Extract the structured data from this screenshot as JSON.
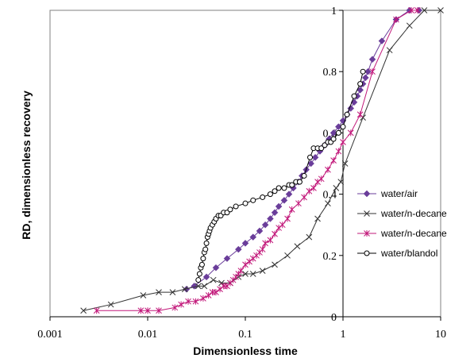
{
  "chart_data": {
    "type": "scatter",
    "title": "",
    "xlabel": "Dimensionless time",
    "ylabel": "RD, dimensionless recovery",
    "xscale": "log",
    "xlim": [
      0.001,
      10
    ],
    "ylim": [
      0,
      1
    ],
    "x_ticks": [
      "0.001",
      "0.01",
      "0.1",
      "1",
      "10"
    ],
    "y_ticks": [
      "0",
      "0.2",
      "0.4",
      "0.6",
      "0.8",
      "1"
    ],
    "grid": false,
    "legend_position": "right",
    "series": [
      {
        "name": "water/air",
        "color": "#6a3d9a",
        "marker": "diamond",
        "x": [
          0.025,
          0.03,
          0.04,
          0.05,
          0.065,
          0.085,
          0.1,
          0.12,
          0.14,
          0.16,
          0.18,
          0.2,
          0.22,
          0.25,
          0.28,
          0.31,
          0.35,
          0.38,
          0.42,
          0.47,
          0.52,
          0.58,
          0.65,
          0.72,
          0.8,
          0.9,
          1.0,
          1.1,
          1.2,
          1.3,
          1.4,
          1.5,
          1.6,
          1.7,
          1.8,
          2.0,
          2.5,
          3.5,
          4.8,
          6.0
        ],
        "y": [
          0.09,
          0.1,
          0.13,
          0.16,
          0.19,
          0.22,
          0.24,
          0.26,
          0.28,
          0.3,
          0.32,
          0.34,
          0.36,
          0.38,
          0.4,
          0.42,
          0.44,
          0.46,
          0.48,
          0.5,
          0.52,
          0.54,
          0.56,
          0.58,
          0.6,
          0.62,
          0.64,
          0.66,
          0.68,
          0.7,
          0.72,
          0.74,
          0.76,
          0.78,
          0.8,
          0.84,
          0.9,
          0.97,
          1.0,
          1.0
        ]
      },
      {
        "name": "water/n-decane",
        "color": "#333333",
        "marker": "x",
        "x": [
          0.0022,
          0.0042,
          0.009,
          0.013,
          0.018,
          0.024,
          0.033,
          0.038,
          0.047,
          0.057,
          0.07,
          0.085,
          0.1,
          0.12,
          0.15,
          0.2,
          0.27,
          0.34,
          0.45,
          0.55,
          0.7,
          0.85,
          0.95,
          1.05,
          1.6,
          3.0,
          4.8,
          6.8,
          10
        ],
        "y": [
          0.02,
          0.04,
          0.07,
          0.08,
          0.08,
          0.09,
          0.1,
          0.1,
          0.12,
          0.11,
          0.11,
          0.13,
          0.14,
          0.14,
          0.15,
          0.17,
          0.2,
          0.23,
          0.26,
          0.32,
          0.37,
          0.42,
          0.44,
          0.5,
          0.65,
          0.87,
          0.95,
          1.0,
          1.0
        ]
      },
      {
        "name": "water/n-decane",
        "color": "#c2187a",
        "marker": "asterisk",
        "x": [
          0.003,
          0.0085,
          0.01,
          0.013,
          0.019,
          0.022,
          0.026,
          0.031,
          0.037,
          0.042,
          0.046,
          0.05,
          0.055,
          0.06,
          0.065,
          0.07,
          0.075,
          0.08,
          0.085,
          0.09,
          0.1,
          0.11,
          0.12,
          0.13,
          0.14,
          0.15,
          0.16,
          0.18,
          0.2,
          0.22,
          0.24,
          0.27,
          0.3,
          0.35,
          0.4,
          0.45,
          0.5,
          0.55,
          0.6,
          0.7,
          0.8,
          0.9,
          1.0,
          1.2,
          1.5,
          2.0,
          3.5,
          5.0,
          5.8
        ],
        "y": [
          0.02,
          0.02,
          0.02,
          0.02,
          0.03,
          0.04,
          0.05,
          0.05,
          0.06,
          0.07,
          0.08,
          0.08,
          0.09,
          0.1,
          0.1,
          0.11,
          0.12,
          0.13,
          0.14,
          0.15,
          0.17,
          0.18,
          0.19,
          0.2,
          0.21,
          0.22,
          0.24,
          0.25,
          0.27,
          0.29,
          0.3,
          0.32,
          0.35,
          0.37,
          0.39,
          0.41,
          0.42,
          0.44,
          0.45,
          0.48,
          0.51,
          0.54,
          0.57,
          0.6,
          0.66,
          0.8,
          0.97,
          1.0,
          1.0
        ]
      },
      {
        "name": "water/blandol",
        "color": "#000000",
        "marker": "circle",
        "x": [
          0.033,
          0.034,
          0.035,
          0.036,
          0.037,
          0.038,
          0.039,
          0.04,
          0.041,
          0.042,
          0.043,
          0.044,
          0.046,
          0.048,
          0.05,
          0.053,
          0.056,
          0.06,
          0.065,
          0.07,
          0.08,
          0.1,
          0.12,
          0.15,
          0.18,
          0.2,
          0.22,
          0.25,
          0.28,
          0.3,
          0.33,
          0.36,
          0.4,
          0.46,
          0.5,
          0.55,
          0.6,
          0.65,
          0.7,
          0.75,
          0.8,
          0.9,
          1.0,
          1.1,
          1.3,
          1.5,
          1.6
        ],
        "y": [
          0.12,
          0.14,
          0.16,
          0.17,
          0.19,
          0.21,
          0.22,
          0.24,
          0.26,
          0.27,
          0.28,
          0.29,
          0.3,
          0.31,
          0.32,
          0.33,
          0.33,
          0.34,
          0.34,
          0.35,
          0.36,
          0.37,
          0.38,
          0.39,
          0.4,
          0.41,
          0.42,
          0.42,
          0.43,
          0.43,
          0.44,
          0.44,
          0.46,
          0.52,
          0.55,
          0.55,
          0.55,
          0.56,
          0.57,
          0.57,
          0.58,
          0.6,
          0.62,
          0.66,
          0.72,
          0.76,
          0.8
        ]
      }
    ]
  }
}
